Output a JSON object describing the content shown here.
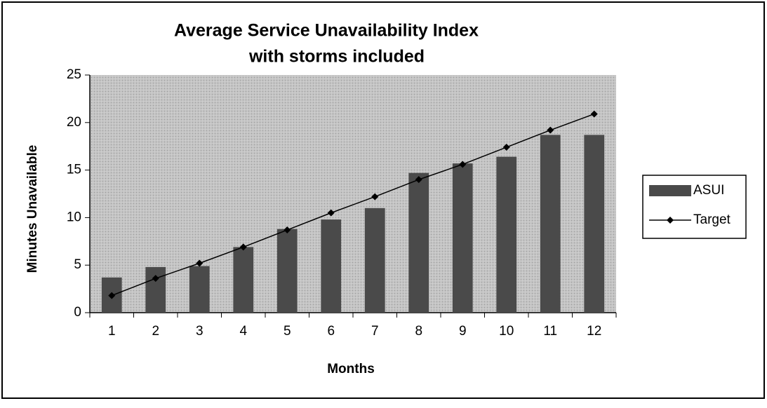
{
  "chart_data": {
    "type": "bar",
    "title": [
      "Average Service Unavailability Index",
      "with storms included"
    ],
    "x_label": "Months",
    "y_label": "Minutes Unavailable",
    "categories": [
      "1",
      "2",
      "3",
      "4",
      "5",
      "6",
      "7",
      "8",
      "9",
      "10",
      "11",
      "12"
    ],
    "series": [
      {
        "name": "ASUI",
        "type": "bar",
        "color": "#4a4a4a",
        "values": [
          3.7,
          4.8,
          4.9,
          6.9,
          8.8,
          9.8,
          11.0,
          14.7,
          15.7,
          16.4,
          18.7,
          18.7
        ]
      },
      {
        "name": "Target",
        "type": "line",
        "color": "#000000",
        "values": [
          1.8,
          3.6,
          5.2,
          6.9,
          8.7,
          10.5,
          12.2,
          14.0,
          15.6,
          17.4,
          19.2,
          20.9
        ]
      }
    ],
    "ylim": [
      0,
      25
    ],
    "yticks": [
      0,
      5,
      10,
      15,
      20,
      25
    ],
    "plot_background": "#c4c4c4",
    "legend": "right"
  }
}
